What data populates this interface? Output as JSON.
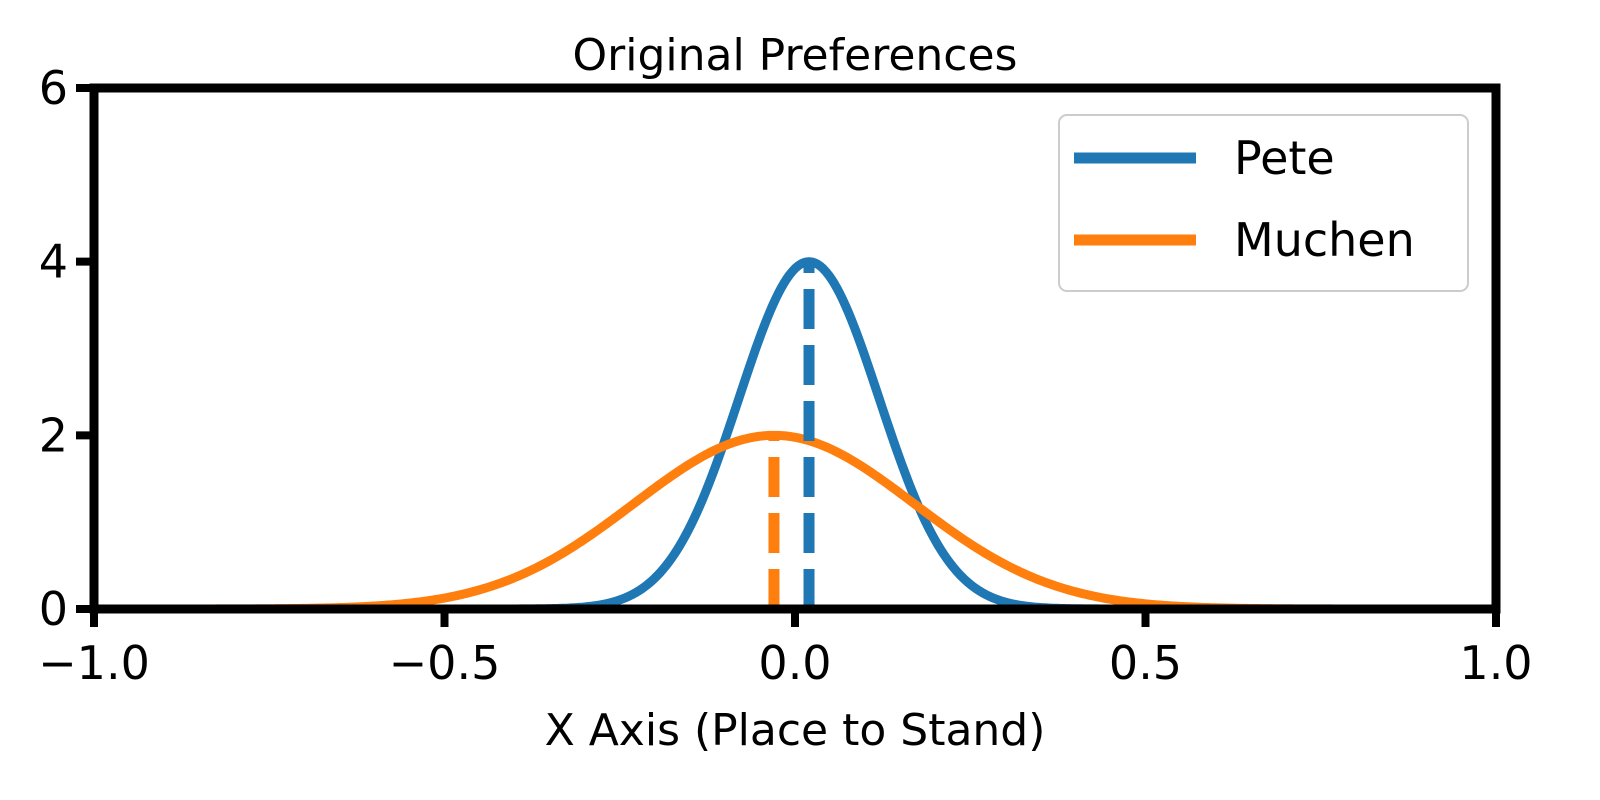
{
  "chart_data": {
    "type": "line",
    "title": "Original Preferences",
    "xlabel": "X Axis (Place to Stand)",
    "ylabel": "",
    "xlim": [
      -1.0,
      1.0
    ],
    "ylim": [
      0,
      6
    ],
    "x_ticks": [
      -1.0,
      -0.5,
      0.0,
      0.5,
      1.0
    ],
    "x_tick_labels": [
      "−1.0",
      "−0.5",
      "0.0",
      "0.5",
      "1.0"
    ],
    "y_ticks": [
      0,
      2,
      4,
      6
    ],
    "y_tick_labels": [
      "0",
      "2",
      "4",
      "6"
    ],
    "grid": false,
    "legend_position": "top-right",
    "series": [
      {
        "name": "Pete",
        "color": "#1f77b4",
        "curve": "gaussian",
        "mean": 0.02,
        "std": 0.1,
        "peak": 4.0,
        "marker_line_x": 0.02
      },
      {
        "name": "Muchen",
        "color": "#ff7f0e",
        "curve": "gaussian",
        "mean": -0.03,
        "std": 0.2,
        "peak": 2.0,
        "marker_line_x": -0.03
      }
    ]
  }
}
